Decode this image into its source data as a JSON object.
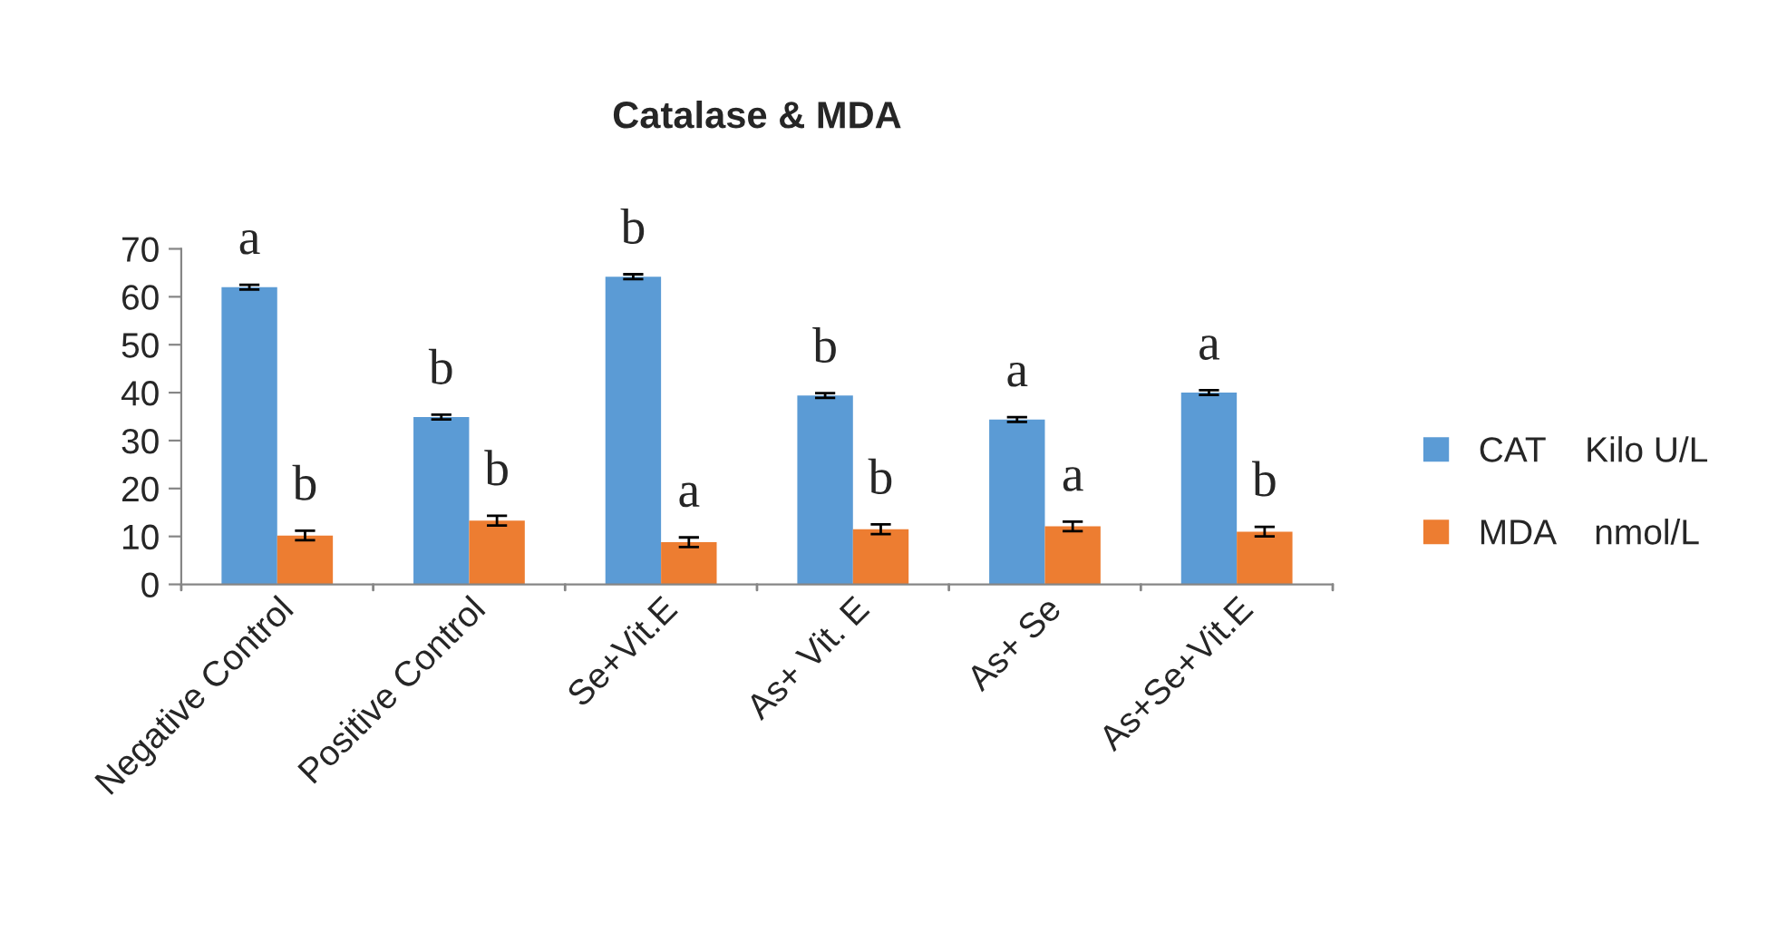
{
  "chart_data": {
    "type": "bar",
    "title": "Catalase & MDA",
    "categories": [
      "Negative Control",
      "Positive Control",
      "Se+Vit.E",
      "As+ Vit. E",
      "As+ Se",
      "As+Se+Vit.E"
    ],
    "series": [
      {
        "name": "CAT    Kilo U/L",
        "color": "#5b9bd5",
        "values": [
          62.0,
          34.9,
          64.2,
          39.4,
          34.4,
          40.0
        ],
        "errors": [
          0.5,
          0.5,
          0.5,
          0.5,
          0.5,
          0.5
        ]
      },
      {
        "name": "MDA    nmol/L",
        "color": "#ed7d31",
        "values": [
          10.2,
          13.3,
          8.8,
          11.5,
          12.1,
          11.0
        ],
        "errors": [
          1,
          1,
          1,
          1,
          1,
          1
        ]
      }
    ],
    "ylim": [
      0,
      70
    ],
    "yticks": [
      0,
      10,
      20,
      30,
      40,
      50,
      60,
      70
    ],
    "grid": false,
    "legend": "right",
    "annotations": [
      "a",
      "b",
      "b",
      "b",
      "b",
      "a",
      "b",
      "b",
      "a",
      "a",
      "a",
      "b"
    ]
  }
}
